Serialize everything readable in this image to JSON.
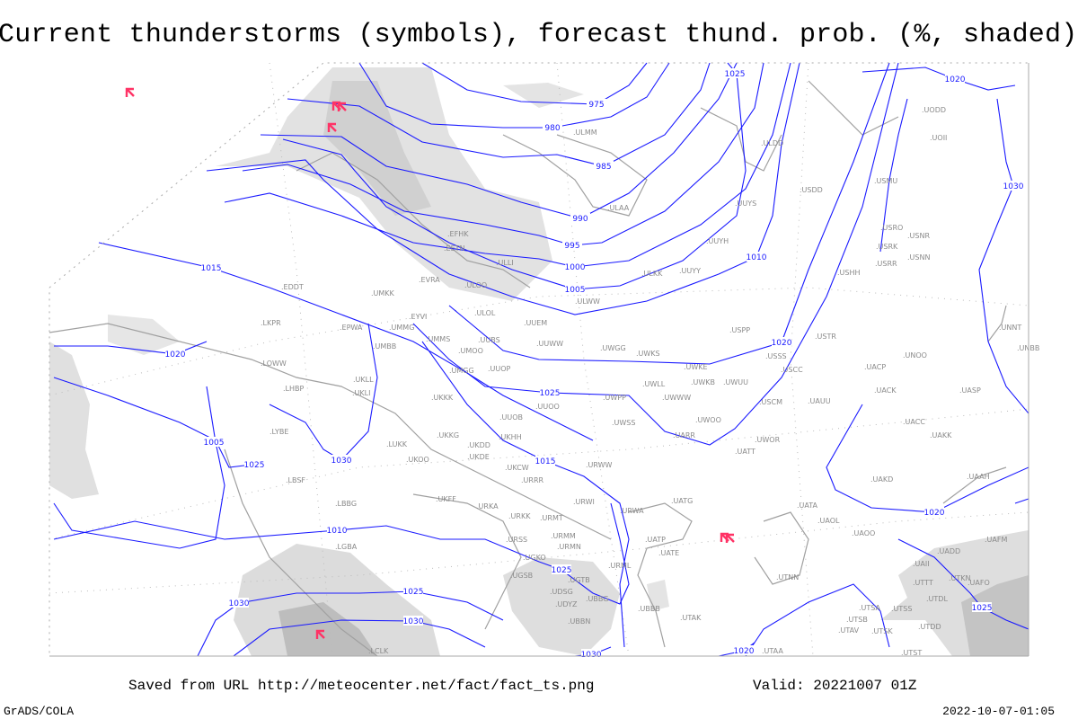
{
  "title": "Current thunderstorms (symbols), forecast thund. prob. (%, shaded)",
  "footer": {
    "saved": "Saved from URL http://meteocenter.net/fact/fact_ts.png",
    "valid": "Valid: 20221007 01Z",
    "software": "GrADS/COLA",
    "timestamp": "2022-10-07-01:05"
  },
  "colors": {
    "isobar": "#1a1aff",
    "coastline": "#a0a0a0",
    "thunderstorm_symbol": "#ff3366",
    "probability_shading": "#d8d8d8"
  },
  "isobar_labels": [
    "975",
    "980",
    "985",
    "990",
    "995",
    "1000",
    "1005",
    "1010",
    "1015",
    "1020",
    "1025",
    "1030",
    "1005",
    "1010",
    "1030",
    "1030",
    "1030",
    "1025",
    "1020",
    "1015",
    "1020",
    "1020",
    "1025",
    "1025",
    "1025",
    "1030",
    "1025",
    "1020"
  ],
  "stations": [
    "ULMM",
    "ULAA",
    "EFHK",
    "EETN",
    "ULLI",
    "EVRA",
    "ULOO",
    "UMKK",
    "ULOL",
    "ULWW",
    "ULKK",
    "UUYY",
    "UUYH",
    "UUYS",
    "ULDD",
    "UODD",
    "UOII",
    "USDD",
    "USMU",
    "USRO",
    "USRK",
    "USNR",
    "USRR",
    "USNN",
    "USHH",
    "EDDT",
    "LKPR",
    "EPWA",
    "EYVI",
    "UMMG",
    "UMBB",
    "UUEM",
    "UMMS",
    "UMOO",
    "UUBS",
    "UUWW",
    "UWGG",
    "UWKS",
    "LOWW",
    "UMGG",
    "UUOP",
    "UKLL",
    "UKLI",
    "LHBP",
    "UKKK",
    "UWPP",
    "UUOO",
    "UUOB",
    "UWSS",
    "LYBE",
    "UKKG",
    "UKHH",
    "LUKK",
    "UKDD",
    "UKDE",
    "UKOO",
    "UKCW",
    "URWW",
    "LBSF",
    "URRR",
    "UKFF",
    "LBBG",
    "URKA",
    "URWI",
    "URKK",
    "URMT",
    "URWA",
    "URSS",
    "URMM",
    "URMN",
    "LGBA",
    "USPP",
    "USTR",
    "USSS",
    "UWKE",
    "USCC",
    "UACP",
    "UNOO",
    "UWLL",
    "UWKB",
    "UWUU",
    "UACK",
    "UASP",
    "UWWW",
    "USCM",
    "UAUU",
    "UNNT",
    "UNBB",
    "UWOO",
    "UARR",
    "UWOR",
    "UACC",
    "UAKK",
    "UATT",
    "UAKD",
    "UAAH",
    "UATG",
    "UATA",
    "UAOL",
    "UAOO",
    "UATP",
    "UATE",
    "UAFM",
    "UADD",
    "UGKO",
    "UGSB",
    "UGTB",
    "UDSG",
    "UBBG",
    "UDYZ",
    "UBBB",
    "UBBN",
    "LCLK",
    "URML",
    "UTAK",
    "UTNN",
    "UTAA",
    "UAII",
    "UTTT",
    "UTKN",
    "UAFO",
    "UTDL",
    "UTSA",
    "UTSS",
    "UTSB",
    "UTDD",
    "UTAV",
    "UTSK",
    "UTST"
  ],
  "thunderstorm_symbols": [
    "thunderstorm",
    "thunderstorm-heavy",
    "thunderstorm",
    "thunderstorm-heavy",
    "thunderstorm"
  ]
}
